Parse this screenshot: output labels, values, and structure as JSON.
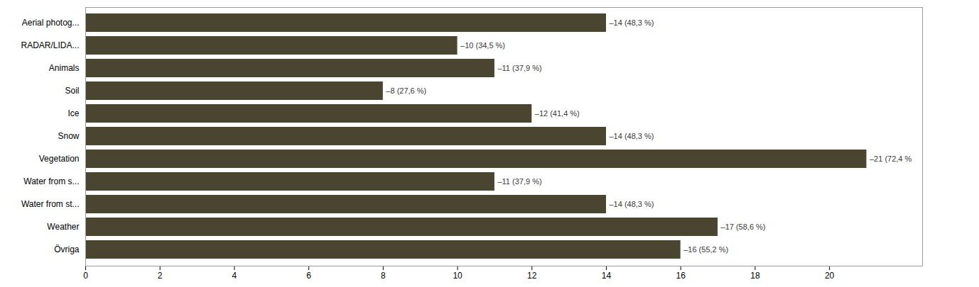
{
  "chart_data": {
    "type": "bar",
    "orientation": "horizontal",
    "categories": [
      "Övriga",
      "Weather",
      "Water from st...",
      "Water from s...",
      "Vegetation",
      "Snow",
      "Ice",
      "Soil",
      "Animals",
      "RADAR/LIDA...",
      "Aerial photog..."
    ],
    "values": [
      16,
      17,
      14,
      11,
      21,
      14,
      12,
      8,
      11,
      10,
      14
    ],
    "value_labels": [
      "–16 (55,2 %)",
      "–17 (58,6 %)",
      "–14 (48,3 %)",
      "–11 (37,9 %)",
      "–21 (72,4 %",
      "–14 (48,3 %)",
      "–12 (41,4 %)",
      "–8 (27,6 %)",
      "–11 (37,9 %)",
      "–10 (34,5 %)",
      "–14 (48,3 %)"
    ],
    "data_labels": true,
    "color": "#4a4530",
    "xlim": [
      0,
      22.5
    ],
    "xticks": [
      0,
      2,
      4,
      6,
      8,
      10,
      12,
      14,
      16,
      18,
      20
    ],
    "grid": false
  }
}
